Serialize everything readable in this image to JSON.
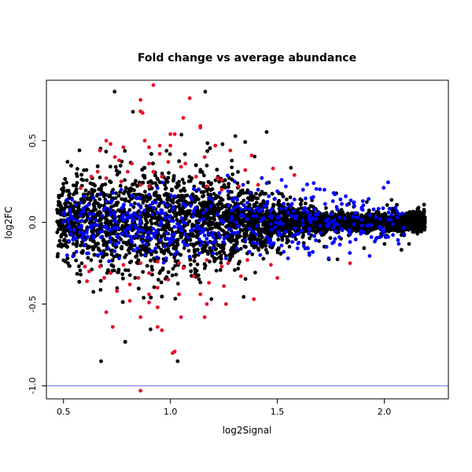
{
  "chart_data": {
    "type": "scatter",
    "title": "Fold change vs average abundance",
    "xlabel": "log2Signal",
    "ylabel": "log2FC",
    "xlim": [
      0.42,
      2.3
    ],
    "ylim": [
      -1.08,
      0.87
    ],
    "x_ticks": [
      0.5,
      1.0,
      1.5,
      2.0
    ],
    "x_tick_labels": [
      "0.5",
      "1.0",
      "1.5",
      "2.0"
    ],
    "y_ticks": [
      -1.0,
      -0.5,
      0.0,
      0.5
    ],
    "y_tick_labels": [
      "-1.0",
      "-0.5",
      "0.0",
      "0.5"
    ],
    "grid": false,
    "reference_line": {
      "y": -1.0,
      "color": "#6b6bff"
    },
    "series": [
      {
        "color": "#000000",
        "density": "dense main cloud"
      },
      {
        "color": "#0000ff"
      },
      {
        "color": "#e8102a"
      }
    ],
    "red_points": [
      [
        0.86,
        -1.03
      ],
      [
        0.92,
        0.84
      ],
      [
        0.86,
        0.75
      ],
      [
        1.09,
        0.76
      ],
      [
        0.86,
        0.68
      ],
      [
        0.87,
        0.67
      ],
      [
        1.06,
        0.64
      ],
      [
        0.7,
        0.5
      ],
      [
        0.72,
        0.48
      ],
      [
        0.88,
        0.5
      ],
      [
        1.0,
        0.54
      ],
      [
        1.02,
        0.54
      ],
      [
        1.14,
        0.59
      ],
      [
        1.14,
        0.58
      ],
      [
        1.21,
        0.47
      ],
      [
        0.67,
        0.44
      ],
      [
        0.78,
        0.46
      ],
      [
        0.9,
        0.46
      ],
      [
        0.95,
        0.47
      ],
      [
        1.0,
        0.47
      ],
      [
        1.28,
        0.44
      ],
      [
        1.38,
        0.41
      ],
      [
        0.74,
        0.4
      ],
      [
        0.95,
        0.42
      ],
      [
        0.76,
        0.38
      ],
      [
        0.82,
        0.36
      ],
      [
        0.9,
        0.36
      ],
      [
        0.99,
        0.37
      ],
      [
        1.07,
        0.36
      ],
      [
        1.16,
        0.4
      ],
      [
        1.05,
        0.34
      ],
      [
        1.48,
        0.33
      ],
      [
        0.66,
        0.31
      ],
      [
        0.8,
        0.31
      ],
      [
        0.92,
        0.31
      ],
      [
        1.35,
        0.32
      ],
      [
        0.63,
        0.28
      ],
      [
        0.96,
        0.28
      ],
      [
        1.12,
        0.28
      ],
      [
        1.22,
        0.27
      ],
      [
        1.24,
        0.26
      ],
      [
        1.58,
        0.29
      ],
      [
        0.7,
        0.27
      ],
      [
        0.77,
        0.25
      ],
      [
        0.86,
        0.23
      ],
      [
        0.9,
        0.22
      ],
      [
        1.17,
        0.22
      ],
      [
        1.32,
        0.22
      ],
      [
        1.41,
        0.23
      ],
      [
        0.58,
        0.21
      ],
      [
        1.24,
        0.2
      ],
      [
        0.6,
        -0.27
      ],
      [
        0.67,
        -0.27
      ],
      [
        0.78,
        -0.26
      ],
      [
        0.86,
        -0.25
      ],
      [
        0.94,
        -0.24
      ],
      [
        1.04,
        -0.25
      ],
      [
        1.17,
        -0.23
      ],
      [
        1.36,
        -0.23
      ],
      [
        0.62,
        -0.3
      ],
      [
        0.72,
        -0.31
      ],
      [
        0.9,
        -0.31
      ],
      [
        1.06,
        -0.28
      ],
      [
        1.24,
        -0.27
      ],
      [
        1.27,
        -0.25
      ],
      [
        1.47,
        -0.26
      ],
      [
        1.84,
        -0.25
      ],
      [
        0.69,
        -0.34
      ],
      [
        0.85,
        -0.34
      ],
      [
        0.99,
        -0.35
      ],
      [
        1.11,
        -0.33
      ],
      [
        1.33,
        -0.33
      ],
      [
        1.5,
        -0.34
      ],
      [
        0.61,
        -0.36
      ],
      [
        0.81,
        -0.38
      ],
      [
        0.94,
        -0.4
      ],
      [
        1.18,
        -0.37
      ],
      [
        1.25,
        -0.39
      ],
      [
        0.75,
        -0.42
      ],
      [
        0.9,
        -0.44
      ],
      [
        1.04,
        -0.44
      ],
      [
        1.14,
        -0.44
      ],
      [
        1.39,
        -0.47
      ],
      [
        0.7,
        -0.55
      ],
      [
        0.9,
        -0.49
      ],
      [
        0.94,
        -0.52
      ],
      [
        1.17,
        -0.5
      ],
      [
        1.26,
        -0.5
      ],
      [
        0.86,
        -0.58
      ],
      [
        0.81,
        -0.48
      ],
      [
        1.05,
        -0.58
      ],
      [
        1.16,
        -0.58
      ],
      [
        0.73,
        -0.64
      ],
      [
        0.94,
        -0.64
      ],
      [
        0.96,
        -0.66
      ],
      [
        1.02,
        -0.79
      ],
      [
        1.01,
        -0.8
      ]
    ],
    "blue_points": [
      [
        0.53,
        0.08
      ],
      [
        0.58,
        0.12
      ],
      [
        0.64,
        0.15
      ],
      [
        0.7,
        0.13
      ],
      [
        0.73,
        0.18
      ],
      [
        0.78,
        0.1
      ],
      [
        0.84,
        0.15
      ],
      [
        0.9,
        0.17
      ],
      [
        0.97,
        0.12
      ],
      [
        1.02,
        0.16
      ],
      [
        1.07,
        0.1
      ],
      [
        1.13,
        0.2
      ],
      [
        1.18,
        0.15
      ],
      [
        1.23,
        0.18
      ],
      [
        1.29,
        0.14
      ],
      [
        1.34,
        0.23
      ],
      [
        1.41,
        0.2
      ],
      [
        1.45,
        0.24
      ],
      [
        1.5,
        0.19
      ],
      [
        1.54,
        0.22
      ],
      [
        1.58,
        0.14
      ],
      [
        1.62,
        0.2
      ],
      [
        1.66,
        0.15
      ],
      [
        1.72,
        0.2
      ],
      [
        1.76,
        0.13
      ],
      [
        1.82,
        0.16
      ],
      [
        1.86,
        0.1
      ],
      [
        1.9,
        0.13
      ],
      [
        1.95,
        0.08
      ],
      [
        2.02,
        0.06
      ],
      [
        2.07,
        0.05
      ],
      [
        0.55,
        -0.1
      ],
      [
        0.6,
        -0.14
      ],
      [
        0.66,
        -0.2
      ],
      [
        0.71,
        -0.16
      ],
      [
        0.76,
        -0.22
      ],
      [
        0.82,
        -0.12
      ],
      [
        0.88,
        -0.2
      ],
      [
        0.93,
        -0.16
      ],
      [
        0.98,
        -0.22
      ],
      [
        1.03,
        -0.18
      ],
      [
        1.09,
        -0.21
      ],
      [
        1.14,
        -0.14
      ],
      [
        1.2,
        -0.19
      ],
      [
        1.26,
        -0.22
      ],
      [
        1.31,
        -0.16
      ],
      [
        1.37,
        -0.18
      ],
      [
        1.42,
        -0.2
      ],
      [
        1.47,
        -0.14
      ],
      [
        1.53,
        -0.18
      ],
      [
        1.57,
        -0.12
      ],
      [
        1.63,
        -0.16
      ],
      [
        1.68,
        -0.11
      ],
      [
        1.73,
        -0.15
      ],
      [
        1.79,
        -0.09
      ],
      [
        1.84,
        -0.12
      ],
      [
        1.89,
        -0.07
      ],
      [
        1.94,
        -0.09
      ],
      [
        2.0,
        -0.05
      ],
      [
        0.52,
        0.02
      ],
      [
        0.57,
        -0.03
      ],
      [
        0.62,
        0.05
      ],
      [
        0.67,
        -0.06
      ],
      [
        0.74,
        0.04
      ],
      [
        0.8,
        -0.04
      ],
      [
        0.86,
        0.06
      ],
      [
        0.92,
        -0.07
      ],
      [
        0.99,
        0.03
      ],
      [
        1.05,
        -0.05
      ],
      [
        1.11,
        0.07
      ],
      [
        1.16,
        -0.08
      ],
      [
        1.22,
        0.05
      ],
      [
        1.28,
        -0.04
      ],
      [
        1.33,
        0.08
      ],
      [
        1.39,
        -0.06
      ],
      [
        1.44,
        0.1
      ],
      [
        1.49,
        -0.03
      ],
      [
        1.55,
        0.06
      ],
      [
        1.6,
        -0.07
      ],
      [
        1.65,
        0.04
      ],
      [
        1.7,
        -0.02
      ],
      [
        1.75,
        0.05
      ],
      [
        1.8,
        -0.04
      ],
      [
        1.87,
        0.03
      ],
      [
        1.92,
        -0.02
      ],
      [
        1.98,
        0.02
      ],
      [
        2.04,
        -0.01
      ],
      [
        0.54,
        0.14
      ],
      [
        0.61,
        0.1
      ],
      [
        0.69,
        0.08
      ],
      [
        0.77,
        0.2
      ],
      [
        0.85,
        0.11
      ],
      [
        0.94,
        0.21
      ],
      [
        1.01,
        0.08
      ],
      [
        1.1,
        0.14
      ],
      [
        1.19,
        0.1
      ],
      [
        1.27,
        0.19
      ],
      [
        1.36,
        0.12
      ],
      [
        1.46,
        0.16
      ],
      [
        1.56,
        0.1
      ],
      [
        1.67,
        0.24
      ],
      [
        1.78,
        0.08
      ],
      [
        0.56,
        -0.18
      ],
      [
        0.64,
        -0.08
      ],
      [
        0.72,
        -0.12
      ],
      [
        0.83,
        -0.17
      ],
      [
        0.91,
        -0.1
      ],
      [
        1.0,
        -0.12
      ],
      [
        1.08,
        -0.14
      ],
      [
        1.17,
        -0.1
      ],
      [
        1.25,
        -0.12
      ],
      [
        1.35,
        -0.11
      ],
      [
        1.45,
        -0.09
      ],
      [
        1.55,
        -0.22
      ],
      [
        1.65,
        -0.2
      ],
      [
        1.74,
        -0.22
      ],
      [
        1.3,
        0.25
      ],
      [
        1.52,
        0.26
      ]
    ]
  }
}
